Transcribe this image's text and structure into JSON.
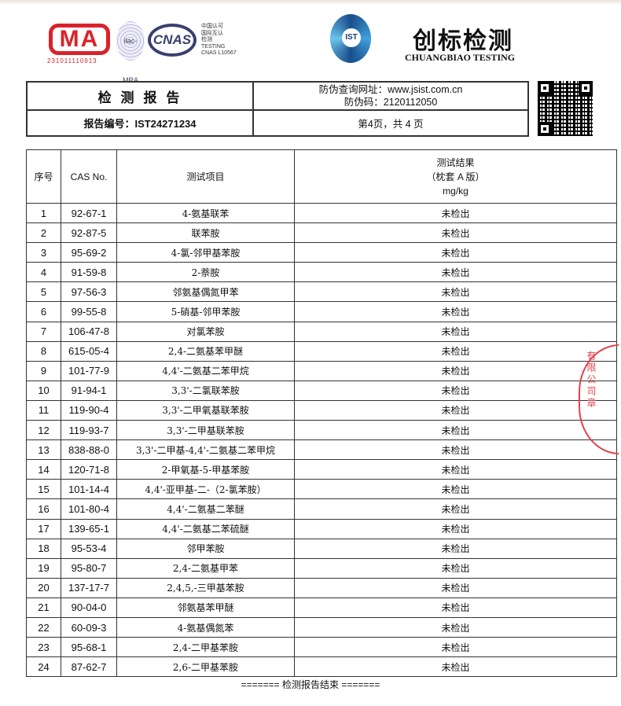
{
  "logos": {
    "cma_text": "MA",
    "cma_number": "231011110913",
    "ilac_text": "ilac-MRA",
    "cnas_text": "CNAS",
    "cnas_caption": [
      "中国认可",
      "国际互认",
      "检测",
      "TESTING",
      "CNAS L10567"
    ],
    "ist_text": "IST"
  },
  "brand": {
    "name": "创标检测",
    "name_en": "CHUANGBIAO TESTING",
    "color": "#1a4e8c"
  },
  "header": {
    "title": "检 测 报 告",
    "verify_url": "防伪查询网址：www.jsist.com.cn",
    "verify_code": "防伪码：2120112050",
    "report_no": "报告编号：IST24271234",
    "page": "第4页，共 4 页"
  },
  "table": {
    "columns": [
      "序号",
      "CAS No.",
      "测试项目"
    ],
    "result_header": [
      "测试结果",
      "（枕套 A 版）",
      "mg/kg"
    ],
    "rows": [
      [
        "1",
        "92-67-1",
        "4-氨基联苯",
        "未检出"
      ],
      [
        "2",
        "92-87-5",
        "联苯胺",
        "未检出"
      ],
      [
        "3",
        "95-69-2",
        "4-氯-邻甲基苯胺",
        "未检出"
      ],
      [
        "4",
        "91-59-8",
        "2-萘胺",
        "未检出"
      ],
      [
        "5",
        "97-56-3",
        "邻氨基偶氮甲苯",
        "未检出"
      ],
      [
        "6",
        "99-55-8",
        "5-硝基-邻甲苯胺",
        "未检出"
      ],
      [
        "7",
        "106-47-8",
        "对氯苯胺",
        "未检出"
      ],
      [
        "8",
        "615-05-4",
        "2,4-二氨基苯甲醚",
        "未检出"
      ],
      [
        "9",
        "101-77-9",
        "4,4'-二氨基二苯甲烷",
        "未检出"
      ],
      [
        "10",
        "91-94-1",
        "3,3'-二氯联苯胺",
        "未检出"
      ],
      [
        "11",
        "119-90-4",
        "3,3'-二甲氧基联苯胺",
        "未检出"
      ],
      [
        "12",
        "119-93-7",
        "3,3'-二甲基联苯胺",
        "未检出"
      ],
      [
        "13",
        "838-88-0",
        "3,3'-二甲基-4,4'-二氨基二苯甲烷",
        "未检出"
      ],
      [
        "14",
        "120-71-8",
        "2-甲氧基-5-甲基苯胺",
        "未检出"
      ],
      [
        "15",
        "101-14-4",
        "4,4'-亚甲基-二-（2-氯苯胺）",
        "未检出"
      ],
      [
        "16",
        "101-80-4",
        "4,4'-二氨基二苯醚",
        "未检出"
      ],
      [
        "17",
        "139-65-1",
        "4,4'-二氨基二苯硫醚",
        "未检出"
      ],
      [
        "18",
        "95-53-4",
        "邻甲苯胺",
        "未检出"
      ],
      [
        "19",
        "95-80-7",
        "2,4-二氨基甲苯",
        "未检出"
      ],
      [
        "20",
        "137-17-7",
        "2,4,5,-三甲基苯胺",
        "未检出"
      ],
      [
        "21",
        "90-04-0",
        "邻氨基苯甲醚",
        "未检出"
      ],
      [
        "22",
        "60-09-3",
        "4-氨基偶氮苯",
        "未检出"
      ],
      [
        "23",
        "95-68-1",
        "2,4-二甲基苯胺",
        "未检出"
      ],
      [
        "24",
        "87-62-7",
        "2,6-二甲基苯胺",
        "未检出"
      ]
    ]
  },
  "footer": "======= 检测报告结束 =======",
  "stamp": {
    "text": "有限公司章",
    "color": "#e0424a"
  }
}
